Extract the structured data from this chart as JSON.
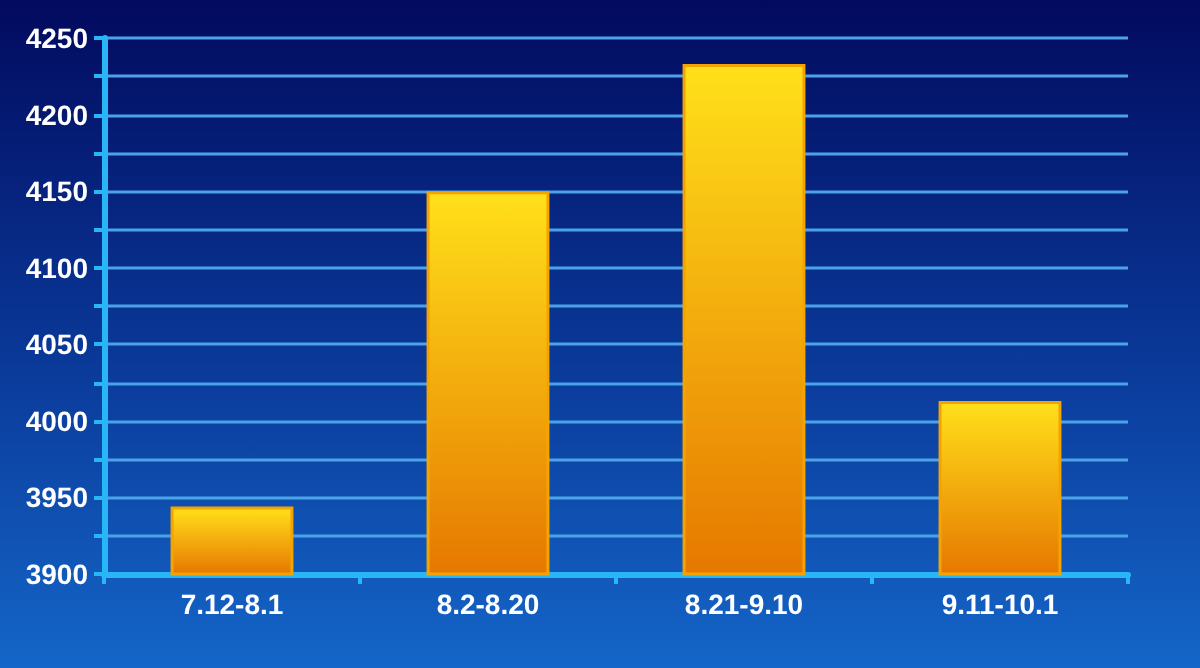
{
  "chart_data": {
    "type": "bar",
    "categories": [
      "7.12-8.1",
      "8.2-8.20",
      "8.21-9.10",
      "9.11-10.1"
    ],
    "values": [
      3944,
      4150,
      4233,
      4013
    ],
    "color": "#f5a300",
    "ylim": [
      3900,
      4250
    ],
    "yticks": [
      3900,
      {
        "value": 3925,
        "label": null
      },
      3950,
      {
        "value": 3975,
        "label": null
      },
      4000,
      {
        "value": 4025,
        "label": null
      },
      4050,
      {
        "value": 4075,
        "label": null
      },
      4100,
      {
        "value": 4125,
        "label": null
      },
      4150,
      {
        "value": 4175,
        "label": null
      },
      4200,
      {
        "value": 4225,
        "label": null
      },
      4250
    ],
    "grid": "y"
  }
}
